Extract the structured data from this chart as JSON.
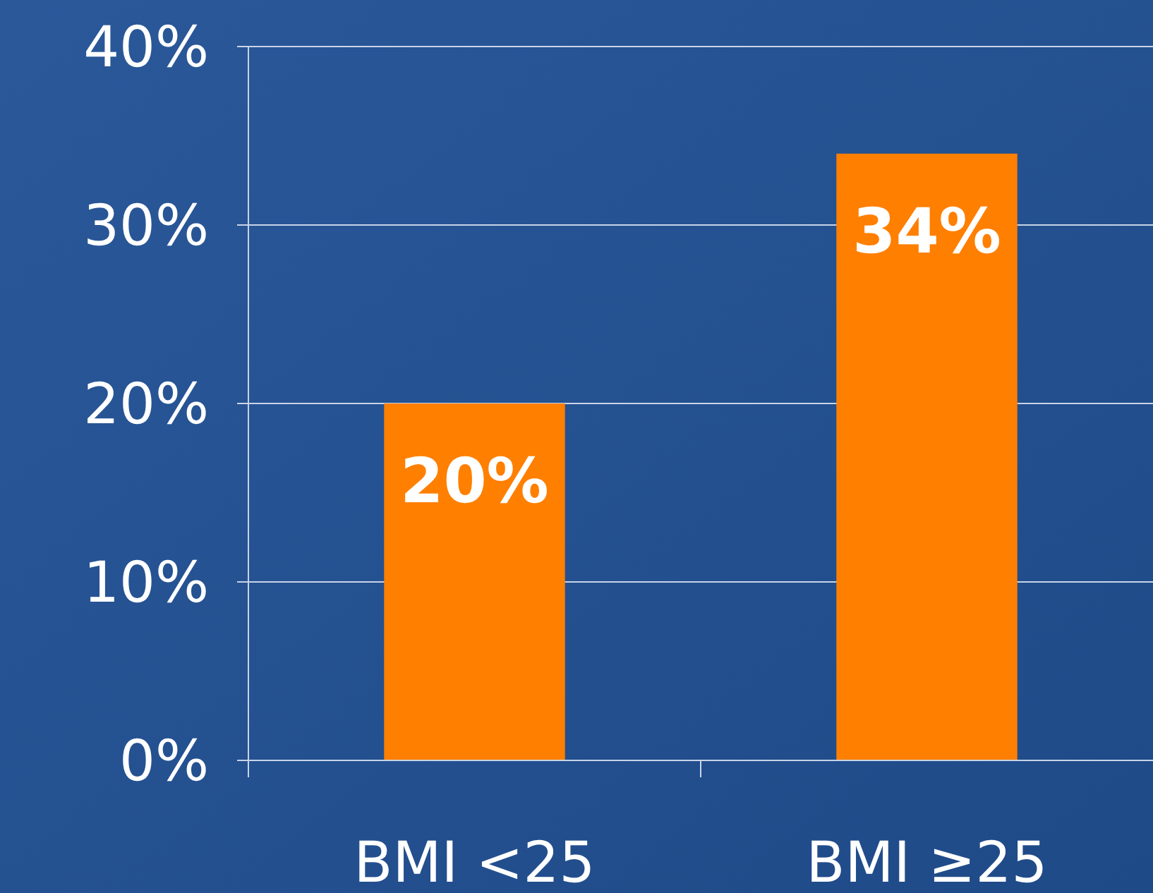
{
  "chart_data": {
    "type": "bar",
    "categories": [
      "BMI <25",
      "BMI ≥25"
    ],
    "values": [
      20,
      34
    ],
    "color": "#ff7f00",
    "value_labels": [
      "20%",
      "34%"
    ],
    "ylim": [
      0,
      40
    ],
    "yticks": [
      {
        "value": 0,
        "label": "0%"
      },
      {
        "value": 10,
        "label": "10%"
      },
      {
        "value": 20,
        "label": "20%"
      },
      {
        "value": 30,
        "label": "30%"
      },
      {
        "value": 40,
        "label": "40%"
      }
    ],
    "grid": "y"
  }
}
